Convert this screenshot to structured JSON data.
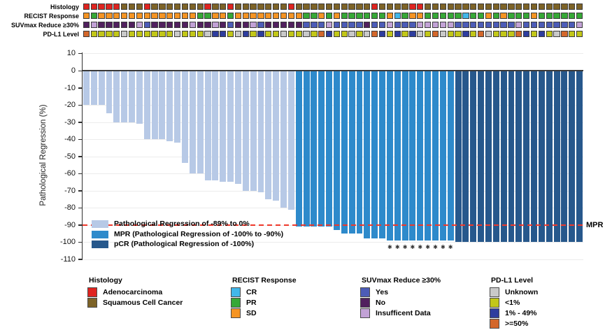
{
  "tracks": {
    "rows": [
      {
        "label": "Histology",
        "palette": {
          "A": "#df2420",
          "S": "#7d6327"
        },
        "codes": [
          "A",
          "A",
          "A",
          "A",
          "A",
          "S",
          "S",
          "S",
          "A",
          "S",
          "S",
          "S",
          "S",
          "S",
          "S",
          "S",
          "A",
          "S",
          "S",
          "A",
          "S",
          "S",
          "S",
          "S",
          "S",
          "S",
          "S",
          "A",
          "S",
          "S",
          "S",
          "S",
          "S",
          "S",
          "S",
          "S",
          "S",
          "S",
          "A",
          "S",
          "S",
          "S",
          "S",
          "A",
          "A",
          "S",
          "S",
          "S",
          "S",
          "S",
          "S",
          "S",
          "S",
          "S",
          "S",
          "S",
          "S",
          "S",
          "S",
          "S",
          "S",
          "S",
          "S",
          "S",
          "S",
          "S"
        ]
      },
      {
        "label": "RECIST Response",
        "palette": {
          "CR": "#42b7ea",
          "PR": "#36a836",
          "SD": "#f59423"
        },
        "codes": [
          "SD",
          "PR",
          "SD",
          "SD",
          "SD",
          "SD",
          "SD",
          "SD",
          "SD",
          "SD",
          "SD",
          "SD",
          "SD",
          "SD",
          "SD",
          "PR",
          "PR",
          "SD",
          "SD",
          "PR",
          "SD",
          "SD",
          "SD",
          "SD",
          "SD",
          "SD",
          "SD",
          "SD",
          "SD",
          "PR",
          "PR",
          "SD",
          "PR",
          "SD",
          "PR",
          "PR",
          "PR",
          "PR",
          "PR",
          "PR",
          "SD",
          "CR",
          "PR",
          "SD",
          "SD",
          "PR",
          "PR",
          "PR",
          "PR",
          "PR",
          "CR",
          "PR",
          "PR",
          "SD",
          "PR",
          "SD",
          "PR",
          "PR",
          "PR",
          "SD",
          "PR",
          "PR",
          "PR",
          "PR",
          "PR",
          "PR"
        ]
      },
      {
        "label": "SUVmax Reduce ≥30%",
        "palette": {
          "Y": "#4c5cb7",
          "N": "#51205e",
          "I": "#c2a2d6"
        },
        "codes": [
          "N",
          "I",
          "N",
          "N",
          "N",
          "N",
          "N",
          "I",
          "Y",
          "N",
          "N",
          "N",
          "N",
          "N",
          "I",
          "N",
          "N",
          "I",
          "N",
          "Y",
          "N",
          "N",
          "I",
          "Y",
          "N",
          "N",
          "N",
          "N",
          "N",
          "Y",
          "Y",
          "Y",
          "I",
          "Y",
          "Y",
          "Y",
          "Y",
          "N",
          "Y",
          "Y",
          "I",
          "Y",
          "Y",
          "Y",
          "I",
          "I",
          "I",
          "I",
          "I",
          "Y",
          "Y",
          "Y",
          "Y",
          "Y",
          "Y",
          "Y",
          "Y",
          "I",
          "Y",
          "Y",
          "Y",
          "Y",
          "Y",
          "Y",
          "Y",
          "I"
        ]
      },
      {
        "label": "PD-L1 Level",
        "palette": {
          "U": "#c9c9c9",
          "L": "#c2c718",
          "B": "#2e3d9e",
          "H": "#d3672b"
        },
        "codes": [
          "H",
          "L",
          "L",
          "L",
          "L",
          "U",
          "L",
          "L",
          "L",
          "L",
          "L",
          "L",
          "U",
          "L",
          "L",
          "L",
          "U",
          "B",
          "B",
          "L",
          "U",
          "B",
          "L",
          "B",
          "L",
          "L",
          "U",
          "L",
          "L",
          "U",
          "L",
          "H",
          "B",
          "L",
          "L",
          "U",
          "L",
          "U",
          "H",
          "B",
          "L",
          "B",
          "L",
          "B",
          "U",
          "L",
          "H",
          "U",
          "L",
          "L",
          "B",
          "L",
          "H",
          "U",
          "L",
          "L",
          "L",
          "H",
          "B",
          "L",
          "B",
          "L",
          "U",
          "H",
          "L",
          "L"
        ]
      }
    ]
  },
  "chart_data": {
    "type": "bar",
    "title": "",
    "xlabel": "",
    "ylabel": "Pathological Regression (%)",
    "ylim": [
      -110,
      10
    ],
    "yticks": [
      10,
      0,
      -10,
      -20,
      -30,
      -40,
      -50,
      -60,
      -70,
      -80,
      -90,
      -100,
      -110
    ],
    "grid": "horizontal",
    "values": [
      -20,
      -20,
      -20,
      -25,
      -30,
      -30,
      -30,
      -31,
      -40,
      -40,
      -40,
      -41,
      -42,
      -54,
      -60,
      -60,
      -64,
      -64,
      -65,
      -65,
      -66,
      -70,
      -70,
      -71,
      -75,
      -76,
      -80,
      -81,
      -91,
      -91,
      -91,
      -91,
      -91,
      -93,
      -95,
      -95,
      -95,
      -98,
      -98,
      -98,
      -99,
      -99,
      -99,
      -99,
      -99,
      -99,
      -99,
      -99,
      -99,
      -100,
      -100,
      -100,
      -100,
      -100,
      -100,
      -100,
      -100,
      -100,
      -100,
      -100,
      -100,
      -100,
      -100,
      -100,
      -100,
      -100
    ],
    "groups": [
      "light",
      "light",
      "light",
      "light",
      "light",
      "light",
      "light",
      "light",
      "light",
      "light",
      "light",
      "light",
      "light",
      "light",
      "light",
      "light",
      "light",
      "light",
      "light",
      "light",
      "light",
      "light",
      "light",
      "light",
      "light",
      "light",
      "light",
      "light",
      "mpr",
      "mpr",
      "mpr",
      "mpr",
      "mpr",
      "mpr",
      "mpr",
      "mpr",
      "mpr",
      "mpr",
      "mpr",
      "mpr",
      "mpr",
      "mpr",
      "mpr",
      "mpr",
      "mpr",
      "mpr",
      "mpr",
      "mpr",
      "mpr",
      "pcr",
      "pcr",
      "pcr",
      "pcr",
      "pcr",
      "pcr",
      "pcr",
      "pcr",
      "pcr",
      "pcr",
      "pcr",
      "pcr",
      "pcr",
      "pcr",
      "pcr",
      "pcr",
      "pcr"
    ],
    "group_colors": {
      "light": "#b7c9e6",
      "mpr": "#2e8acb",
      "pcr": "#27588c"
    },
    "starred_bars": [
      41,
      42,
      43,
      44,
      45,
      46,
      47,
      48,
      49
    ],
    "star_symbol": "✱",
    "mpr_line": {
      "value": -90,
      "color": "#ee382b",
      "label": "MPR"
    },
    "legend": [
      {
        "label": "Pathological Regression of -89% to 0%",
        "color": "#b7c9e6"
      },
      {
        "label": "MPR (Pathological Regression of -100% to -90%)",
        "color": "#2e8acb"
      },
      {
        "label": "pCR (Pathological Regression of -100%)",
        "color": "#27588c"
      }
    ]
  },
  "bottom_legend": {
    "groups": [
      {
        "title": "Histology",
        "items": [
          {
            "label": "Adenocarcinoma",
            "color": "#df2420"
          },
          {
            "label": "Squamous Cell Cancer",
            "color": "#7d6327"
          }
        ]
      },
      {
        "title": "RECIST Response",
        "items": [
          {
            "label": "CR",
            "color": "#42b7ea"
          },
          {
            "label": "PR",
            "color": "#36a836"
          },
          {
            "label": "SD",
            "color": "#f59423"
          }
        ]
      },
      {
        "title": "SUVmax Reduce ≥30%",
        "items": [
          {
            "label": "Yes",
            "color": "#4c5cb7"
          },
          {
            "label": "No",
            "color": "#51205e"
          },
          {
            "label": "Insufficent Data",
            "color": "#c2a2d6"
          }
        ]
      },
      {
        "title": "PD-L1 Level",
        "items": [
          {
            "label": "Unknown",
            "color": "#c9c9c9"
          },
          {
            "label": "<1%",
            "color": "#c2c718"
          },
          {
            "label": "1% - 49%",
            "color": "#2e3d9e"
          },
          {
            "label": ">=50%",
            "color": "#d3672b"
          }
        ]
      }
    ]
  }
}
